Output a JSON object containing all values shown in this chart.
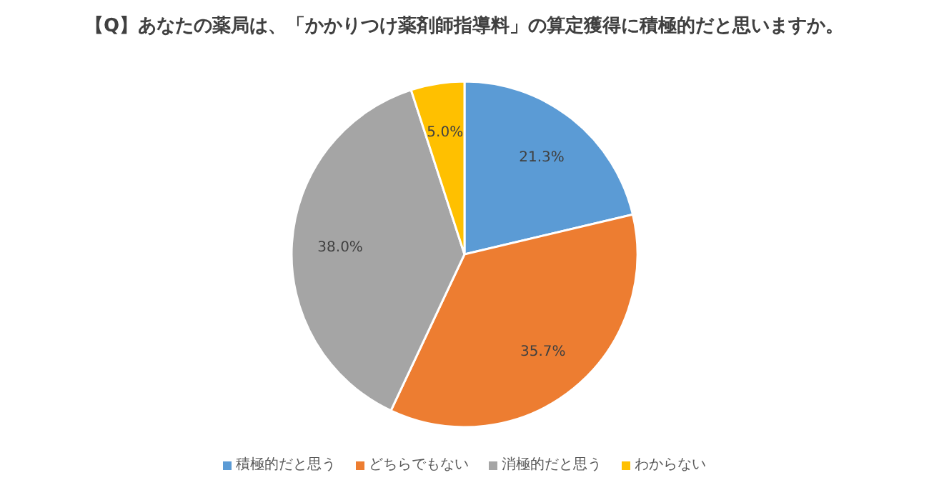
{
  "chart_data": {
    "type": "pie",
    "title": "【Q】あなたの薬局は、「かかりつけ薬剤師指導料」の算定獲得に積極的だと思いますか。",
    "categories": [
      "積極的だと思う",
      "どちらでもない",
      "消極的だと思う",
      "わからない"
    ],
    "values": [
      21.3,
      35.7,
      38.0,
      5.0
    ],
    "colors": [
      "#5b9bd5",
      "#ed7d31",
      "#a5a5a5",
      "#ffc000"
    ],
    "value_labels": [
      "21.3%",
      "35.7%",
      "38.0%",
      "5.0%"
    ],
    "legend": "bottom"
  }
}
